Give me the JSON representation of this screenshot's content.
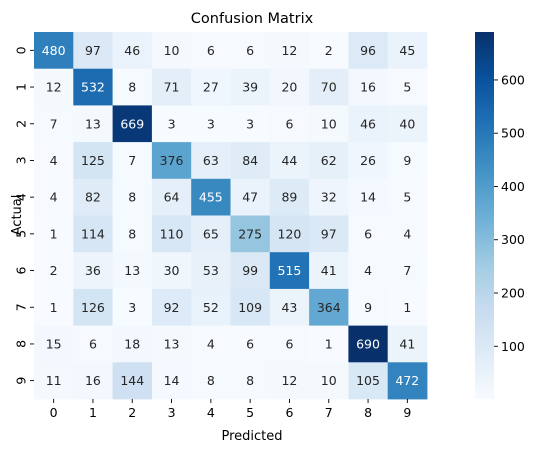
{
  "chart_data": {
    "type": "heatmap",
    "title": "Confusion Matrix",
    "xlabel": "Predicted",
    "ylabel": "Actual",
    "x_categories": [
      "0",
      "1",
      "2",
      "3",
      "4",
      "5",
      "6",
      "7",
      "8",
      "9"
    ],
    "y_categories": [
      "0",
      "1",
      "2",
      "3",
      "4",
      "5",
      "6",
      "7",
      "8",
      "9"
    ],
    "values": [
      [
        480,
        97,
        46,
        10,
        6,
        6,
        12,
        2,
        96,
        45
      ],
      [
        12,
        532,
        8,
        71,
        27,
        39,
        20,
        70,
        16,
        5
      ],
      [
        7,
        13,
        669,
        3,
        3,
        3,
        6,
        10,
        46,
        40
      ],
      [
        4,
        125,
        7,
        376,
        63,
        84,
        44,
        62,
        26,
        9
      ],
      [
        4,
        82,
        8,
        64,
        455,
        47,
        89,
        32,
        14,
        5
      ],
      [
        1,
        114,
        8,
        110,
        65,
        275,
        120,
        97,
        6,
        4
      ],
      [
        2,
        36,
        13,
        30,
        53,
        99,
        515,
        41,
        4,
        7
      ],
      [
        1,
        126,
        3,
        92,
        52,
        109,
        43,
        364,
        9,
        1
      ],
      [
        15,
        6,
        18,
        13,
        4,
        6,
        6,
        1,
        690,
        41
      ],
      [
        11,
        16,
        144,
        14,
        8,
        8,
        12,
        10,
        105,
        472
      ]
    ],
    "colormap": "Blues",
    "color_range": [
      1,
      690
    ],
    "colorbar_ticks": [
      100,
      200,
      300,
      400,
      500,
      600
    ],
    "grid": false
  }
}
